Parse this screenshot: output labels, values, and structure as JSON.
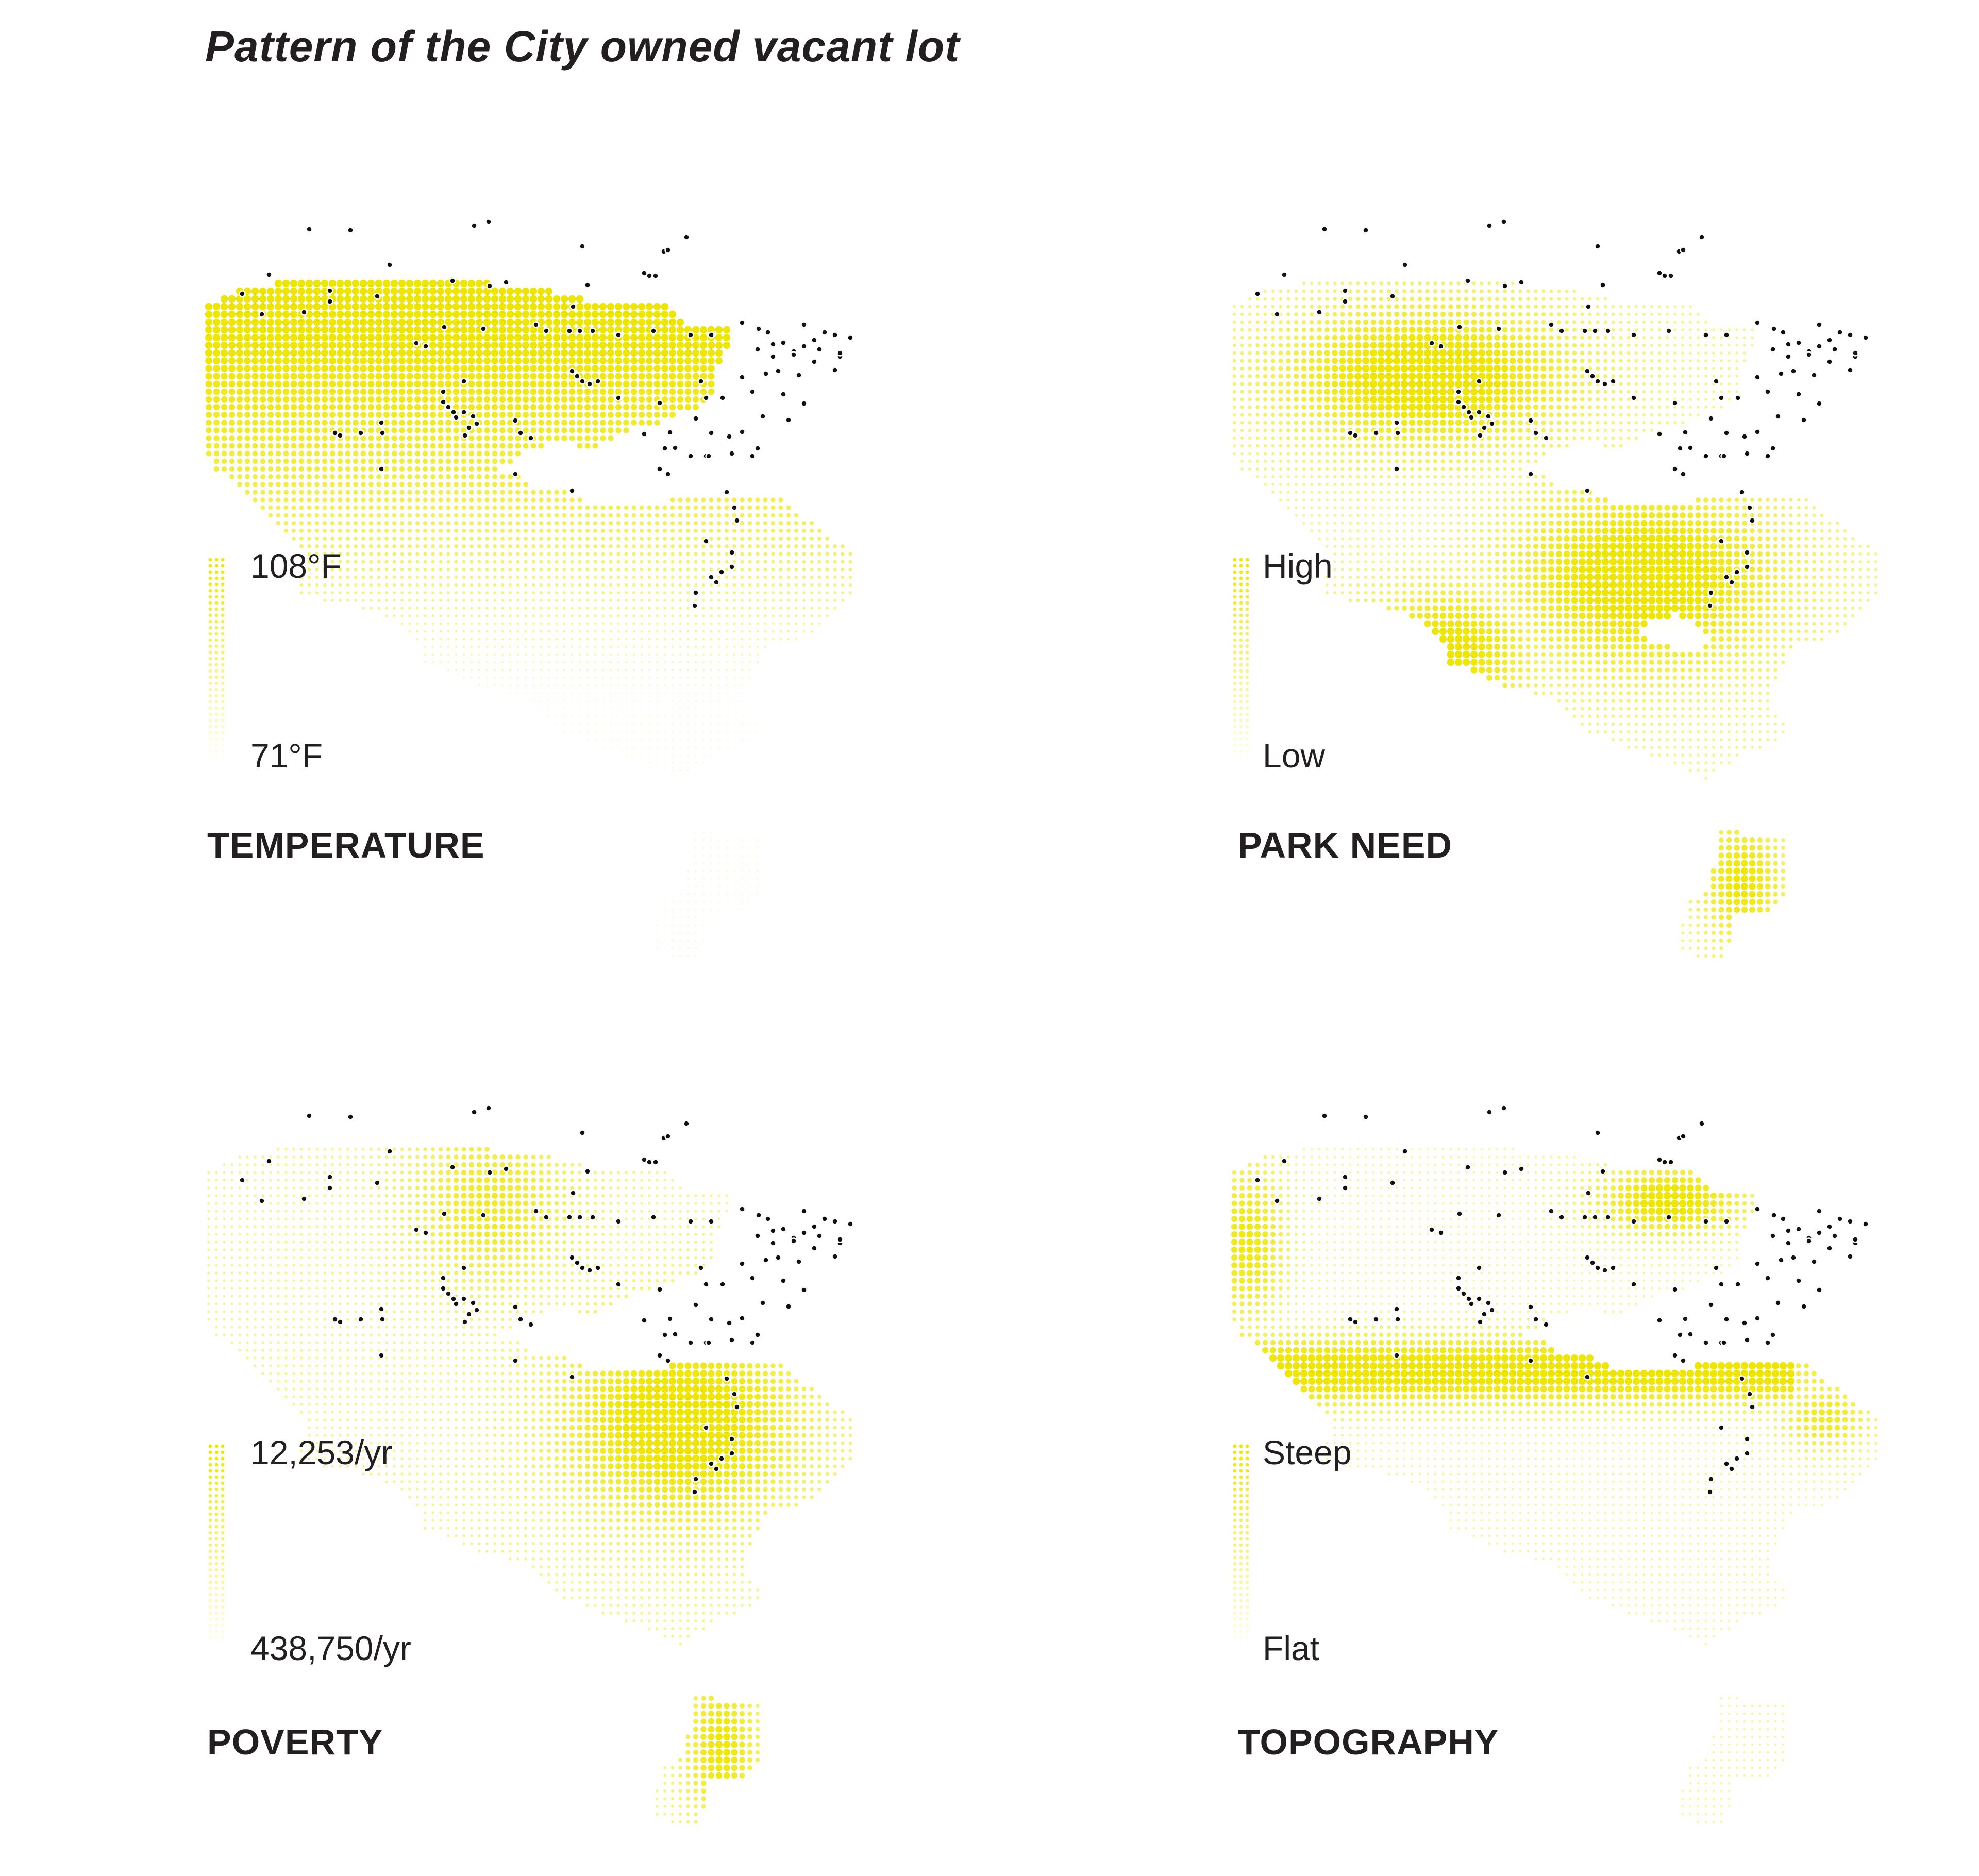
{
  "title": "Pattern of the City owned vacant lot",
  "colors": {
    "dot_fill": "#eee600",
    "lot_marker": "#111111",
    "text": "#231f20"
  },
  "panels": [
    {
      "id": "temperature",
      "title": "TEMPERATURE",
      "legend_high": "108°F",
      "legend_low": "71°F"
    },
    {
      "id": "park-need",
      "title": "PARK NEED",
      "legend_high": "High",
      "legend_low": "Low"
    },
    {
      "id": "poverty",
      "title": "POVERTY",
      "legend_high": "12,253/yr",
      "legend_low": "438,750/yr"
    },
    {
      "id": "topography",
      "title": "TOPOGRAPHY",
      "legend_high": "Steep",
      "legend_low": "Flat"
    }
  ],
  "icons": {
    "lot_marker": "vacant-lot-marker-icon"
  }
}
